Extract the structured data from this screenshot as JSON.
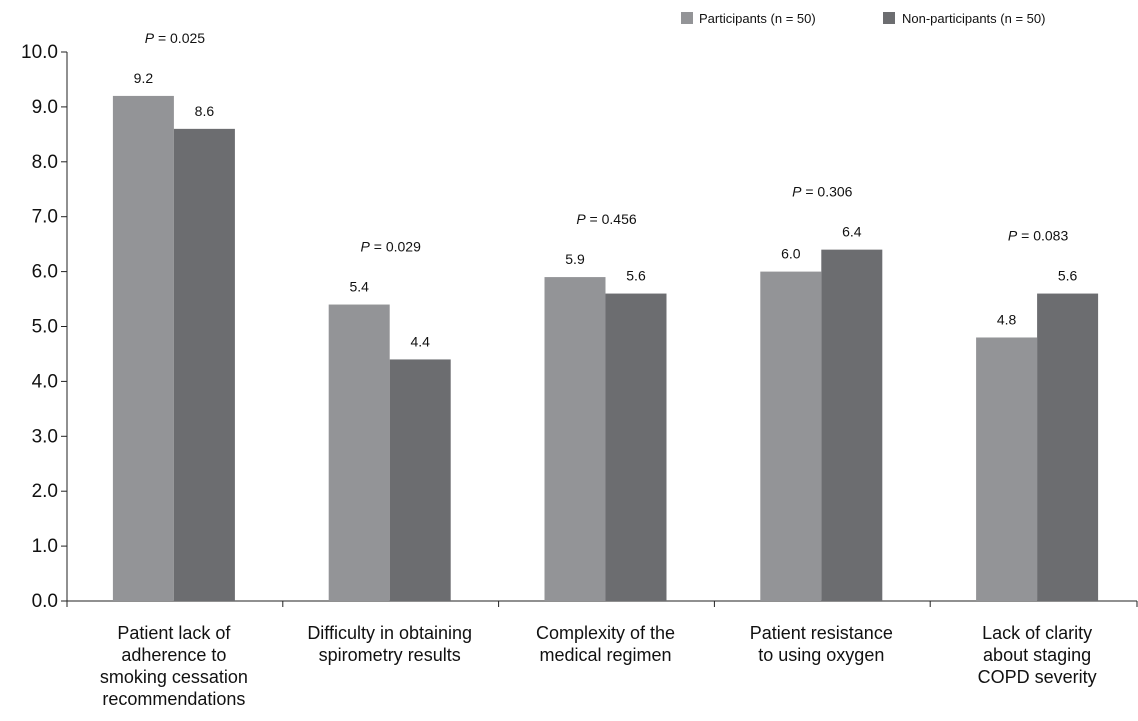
{
  "chart_data": {
    "type": "bar",
    "categories": [
      [
        "Patient lack of",
        "adherence to",
        "smoking cessation",
        "recommendations"
      ],
      [
        "Difficulty in obtaining",
        "spirometry results"
      ],
      [
        "Complexity of the",
        "medical regimen"
      ],
      [
        "Patient resistance",
        "to using oxygen"
      ],
      [
        "Lack of clarity",
        "about staging",
        "COPD severity"
      ]
    ],
    "series": [
      {
        "name": "Participants (n = 50)",
        "color": "#939497",
        "values": [
          9.2,
          5.4,
          5.9,
          6.0,
          4.8
        ],
        "labels": [
          "9.2",
          "5.4",
          "5.9",
          "6.0",
          "4.8"
        ]
      },
      {
        "name": "Non-participants (n = 50)",
        "color": "#6c6d70",
        "values": [
          8.6,
          4.4,
          5.6,
          6.4,
          5.6
        ],
        "labels": [
          "8.6",
          "4.4",
          "5.6",
          "6.4",
          "5.6"
        ]
      }
    ],
    "p_values": [
      "0.025",
      "0.029",
      "0.456",
      "0.306",
      "0.083"
    ],
    "p_prefix": "P",
    "p_equals": " = ",
    "yticks": [
      "0.0",
      "1.0",
      "2.0",
      "3.0",
      "4.0",
      "5.0",
      "6.0",
      "7.0",
      "8.0",
      "9.0",
      "10.0"
    ],
    "ylim": [
      0,
      10
    ],
    "title": "",
    "xlabel": "",
    "ylabel": "",
    "legend_position": "top-right",
    "grid": false
  }
}
